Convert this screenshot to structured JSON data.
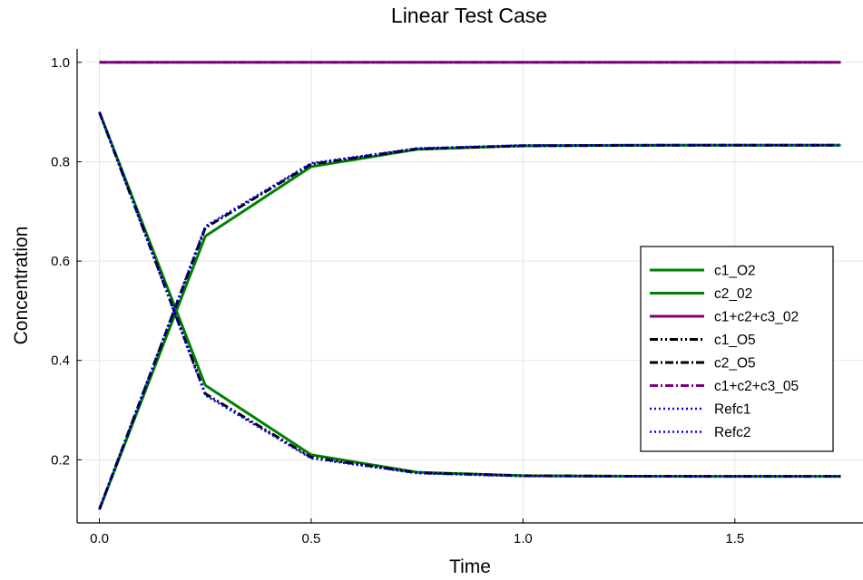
{
  "chart_data": {
    "type": "line",
    "title": "Linear Test Case",
    "xlabel": "Time",
    "ylabel": "Concentration",
    "xlim": [
      -0.0525,
      1.8025
    ],
    "ylim": [
      0.073,
      1.027
    ],
    "xticks": [
      0.0,
      0.5,
      1.0,
      1.5
    ],
    "xtick_labels": [
      "0.0",
      "0.5",
      "1.0",
      "1.5"
    ],
    "yticks": [
      0.2,
      0.4,
      0.6,
      0.8,
      1.0
    ],
    "ytick_labels": [
      "0.2",
      "0.4",
      "0.6",
      "0.8",
      "1.0"
    ],
    "grid": true,
    "legend_position": "right",
    "x": [
      0.0,
      0.25,
      0.5,
      0.75,
      1.0,
      1.25,
      1.5,
      1.75
    ],
    "series": [
      {
        "name": "c1_O2",
        "color": "#008000",
        "style": "solid",
        "values": [
          0.9,
          0.35,
          0.21,
          0.175,
          0.168,
          0.167,
          0.1667,
          0.1667
        ]
      },
      {
        "name": "c2_02",
        "color": "#008000",
        "style": "solid",
        "values": [
          0.1,
          0.65,
          0.79,
          0.825,
          0.832,
          0.833,
          0.8333,
          0.8333
        ]
      },
      {
        "name": "c1+c2+c3_02",
        "color": "#800080",
        "style": "solid",
        "values": [
          1.0,
          1.0,
          1.0,
          1.0,
          1.0,
          1.0,
          1.0,
          1.0
        ]
      },
      {
        "name": "c1_O5",
        "color": "#000000",
        "style": "dashdotdot",
        "values": [
          0.9,
          0.333,
          0.205,
          0.174,
          0.168,
          0.167,
          0.1667,
          0.1667
        ]
      },
      {
        "name": "c2_O5",
        "color": "#000000",
        "style": "dashdot",
        "values": [
          0.1,
          0.667,
          0.795,
          0.826,
          0.832,
          0.833,
          0.8333,
          0.8333
        ]
      },
      {
        "name": "c1+c2+c3_05",
        "color": "#800080",
        "style": "dashdot",
        "values": [
          1.0,
          1.0,
          1.0,
          1.0,
          1.0,
          1.0,
          1.0,
          1.0
        ]
      },
      {
        "name": "Refc1",
        "color": "#0000ff",
        "style": "dotted",
        "values": [
          0.9,
          0.33,
          0.203,
          0.173,
          0.167,
          0.1667,
          0.1667,
          0.1667
        ]
      },
      {
        "name": "Refc2",
        "color": "#0000ff",
        "style": "dotted",
        "values": [
          0.1,
          0.67,
          0.797,
          0.827,
          0.833,
          0.8333,
          0.8333,
          0.8333
        ]
      }
    ]
  }
}
